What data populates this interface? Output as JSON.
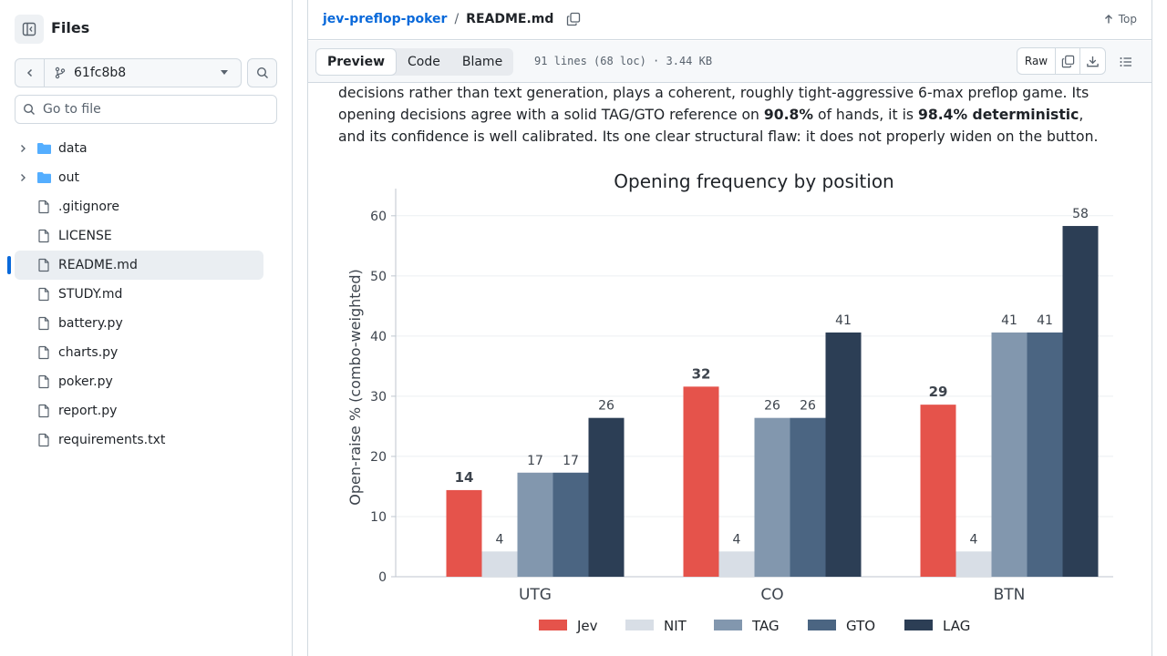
{
  "sidebar": {
    "title": "Files",
    "branch": "61fc8b8",
    "goto_placeholder": "Go to file",
    "items": [
      {
        "label": "data",
        "type": "folder"
      },
      {
        "label": "out",
        "type": "folder"
      },
      {
        "label": ".gitignore",
        "type": "file"
      },
      {
        "label": "LICENSE",
        "type": "file"
      },
      {
        "label": "README.md",
        "type": "file",
        "active": true
      },
      {
        "label": "STUDY.md",
        "type": "file"
      },
      {
        "label": "battery.py",
        "type": "file"
      },
      {
        "label": "charts.py",
        "type": "file"
      },
      {
        "label": "poker.py",
        "type": "file"
      },
      {
        "label": "report.py",
        "type": "file"
      },
      {
        "label": "requirements.txt",
        "type": "file"
      }
    ]
  },
  "header": {
    "repo": "jev-preflop-poker",
    "separator": "/",
    "file": "README.md",
    "top_label": "Top"
  },
  "toolbar": {
    "tabs": [
      "Preview",
      "Code",
      "Blame"
    ],
    "active_tab": "Preview",
    "file_info": "91 lines (68 loc) · 3.44 KB",
    "raw_label": "Raw"
  },
  "readme": {
    "line1": "decisions rather than text generation, plays a coherent, roughly tight-aggressive 6-max preflop game. Its",
    "line2_a": "opening decisions agree with a solid TAG/GTO reference on ",
    "line2_b": "90.8%",
    "line2_c": " of hands, it is ",
    "line2_d": "98.4% deterministic",
    "line2_e": ",",
    "line3": "and its confidence is well calibrated. Its one clear structural flaw: it does not properly widen on the button."
  },
  "chart_data": {
    "type": "bar",
    "title": "Opening frequency by position",
    "ylabel": "Open-raise % (combo-weighted)",
    "xlabel": "",
    "categories": [
      "UTG",
      "CO",
      "BTN"
    ],
    "ylim": [
      0,
      63
    ],
    "yticks": [
      0,
      10,
      20,
      30,
      40,
      50,
      60
    ],
    "grid": true,
    "legend": "bottom",
    "series": [
      {
        "name": "Jev",
        "values": [
          14.4,
          31.6,
          28.6
        ],
        "labels": [
          "14",
          "32",
          "29"
        ],
        "color": "#e5534b",
        "bold_labels": true
      },
      {
        "name": "NIT",
        "values": [
          4.2,
          4.2,
          4.2
        ],
        "labels": [
          "4",
          "4",
          "4"
        ],
        "color": "#d8dee6"
      },
      {
        "name": "TAG",
        "values": [
          17.3,
          26.4,
          40.6
        ],
        "labels": [
          "17",
          "26",
          "41"
        ],
        "color": "#8297ae"
      },
      {
        "name": "GTO",
        "values": [
          17.3,
          26.4,
          40.6
        ],
        "labels": [
          "17",
          "26",
          "41"
        ],
        "color": "#4b6582"
      },
      {
        "name": "LAG",
        "values": [
          26.4,
          40.6,
          58.3
        ],
        "labels": [
          "26",
          "41",
          "58"
        ],
        "color": "#2c3e55"
      }
    ]
  }
}
